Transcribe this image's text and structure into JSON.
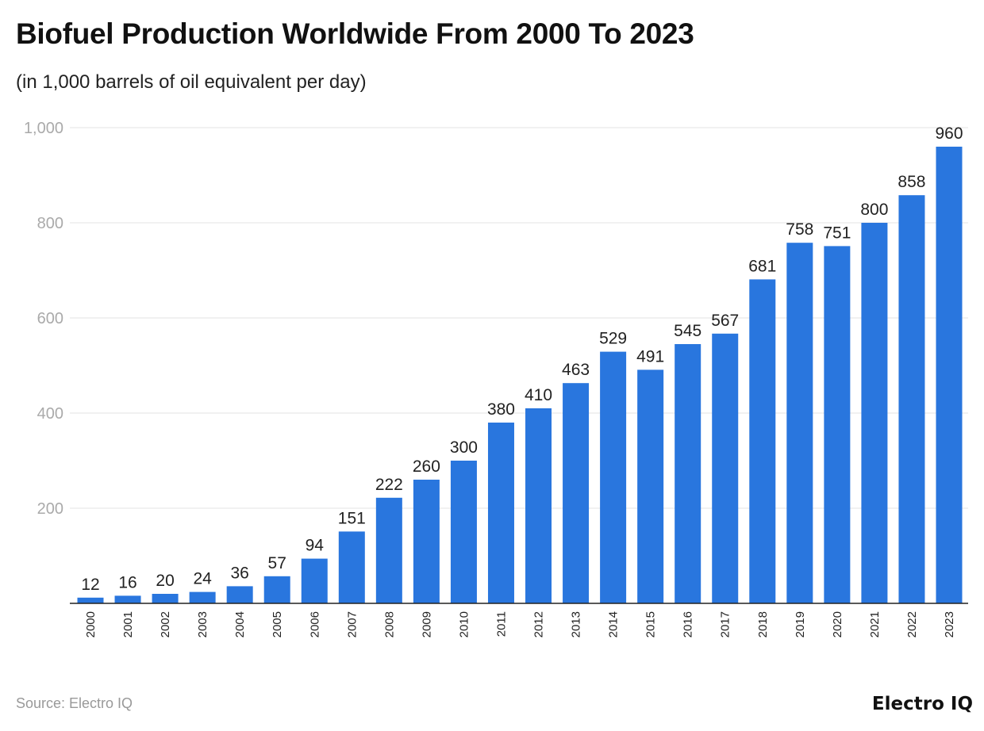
{
  "chart_data": {
    "type": "bar",
    "title": "Biofuel Production Worldwide From 2000 To 2023",
    "subtitle": "(in 1,000 barrels of oil equivalent per day)",
    "xlabel": "",
    "ylabel": "",
    "categories": [
      "2000",
      "2001",
      "2002",
      "2003",
      "2004",
      "2005",
      "2006",
      "2007",
      "2008",
      "2009",
      "2010",
      "2011",
      "2012",
      "2013",
      "2014",
      "2015",
      "2016",
      "2017",
      "2018",
      "2019",
      "2020",
      "2021",
      "2022",
      "2023"
    ],
    "values": [
      12,
      16,
      20,
      24,
      36,
      57,
      94,
      151,
      222,
      260,
      300,
      380,
      410,
      463,
      529,
      491,
      545,
      567,
      681,
      758,
      751,
      800,
      858,
      960
    ],
    "ylim": [
      0,
      1000
    ],
    "yticks": [
      200,
      400,
      600,
      800,
      1000
    ],
    "ytick_labels": [
      "200",
      "400",
      "600",
      "800",
      "1,000"
    ],
    "grid": true,
    "bar_color": "#2976de"
  },
  "footer": {
    "source": "Source: Electro IQ",
    "logo": "Electro IQ"
  }
}
